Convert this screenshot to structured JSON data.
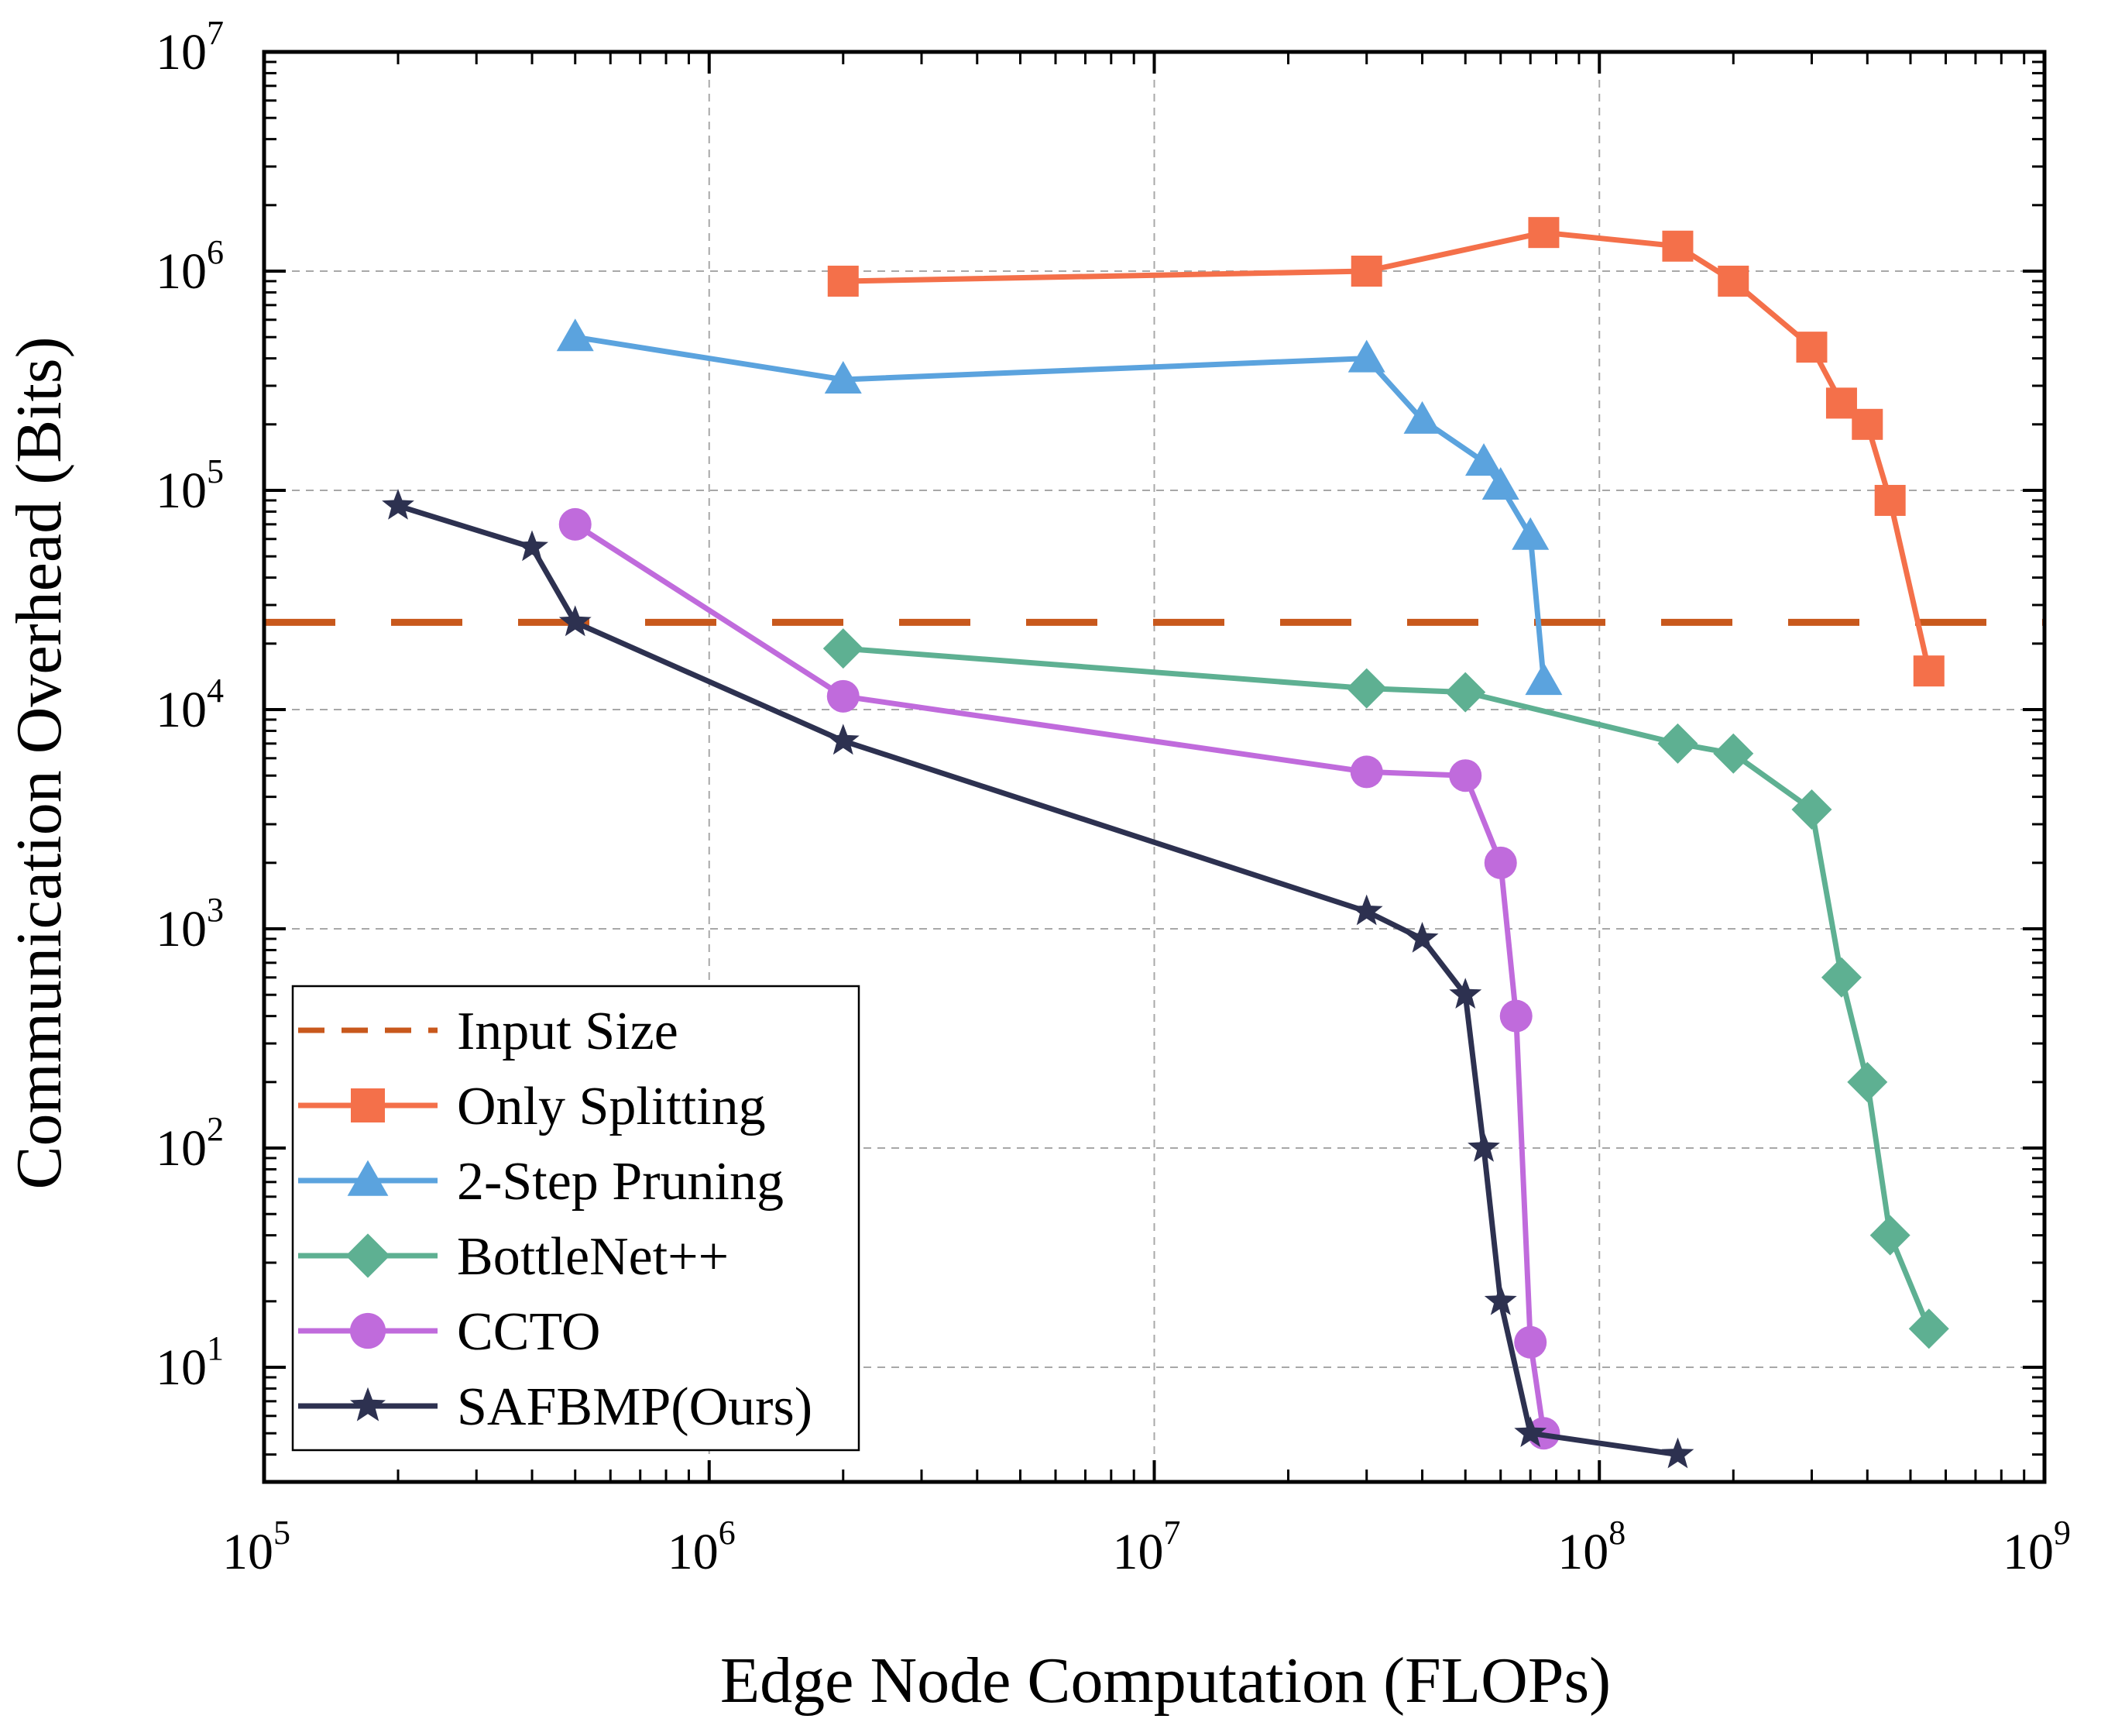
{
  "chart_data": {
    "type": "line",
    "title": "",
    "xlabel": "Edge Node Computation (FLOPs)",
    "ylabel": "Communication Overhead (Bits)",
    "xscale": "log",
    "yscale": "log",
    "xlim": [
      100000,
      1000000000
    ],
    "ylim": [
      3,
      10000000
    ],
    "grid": true,
    "x_ticks": [
      {
        "base": "10",
        "exp": "5"
      },
      {
        "base": "10",
        "exp": "6"
      },
      {
        "base": "10",
        "exp": "7"
      },
      {
        "base": "10",
        "exp": "8"
      },
      {
        "base": "10",
        "exp": "9"
      }
    ],
    "y_ticks": [
      {
        "base": "10",
        "exp": "1"
      },
      {
        "base": "10",
        "exp": "2"
      },
      {
        "base": "10",
        "exp": "3"
      },
      {
        "base": "10",
        "exp": "4"
      },
      {
        "base": "10",
        "exp": "5"
      },
      {
        "base": "10",
        "exp": "6"
      },
      {
        "base": "10",
        "exp": "7"
      }
    ],
    "legend_position": "bottom-left",
    "reference_line": {
      "name": "Input Size",
      "y": 25000,
      "color": "#c8581c",
      "style": "dashed"
    },
    "series": [
      {
        "name": "Only Splitting",
        "color": "#f4704a",
        "marker": "square",
        "x": [
          2000000,
          30000000,
          75000000,
          150000000,
          200000000,
          300000000,
          350000000,
          400000000,
          450000000,
          550000000
        ],
        "y": [
          900000,
          1000000,
          1500000,
          1300000,
          900000,
          450000,
          250000,
          200000,
          90000,
          15000
        ]
      },
      {
        "name": "2-Step Pruning",
        "color": "#5ba3de",
        "marker": "triangle",
        "x": [
          500000,
          2000000,
          30000000,
          40000000,
          55000000,
          60000000,
          70000000,
          75000000
        ],
        "y": [
          500000,
          320000,
          400000,
          210000,
          135000,
          105000,
          62000,
          13500
        ]
      },
      {
        "name": "BottleNet++",
        "color": "#5eb092",
        "marker": "diamond",
        "x": [
          2000000,
          30000000,
          50000000,
          150000000,
          200000000,
          300000000,
          350000000,
          400000000,
          450000000,
          550000000
        ],
        "y": [
          19000,
          12500,
          12000,
          7000,
          6300,
          3500,
          600,
          200,
          40,
          15
        ]
      },
      {
        "name": "CCTO",
        "color": "#c06bdc",
        "marker": "circle",
        "x": [
          500000,
          2000000,
          30000000,
          50000000,
          60000000,
          65000000,
          70000000,
          75000000
        ],
        "y": [
          70000,
          11500,
          5200,
          5000,
          2000,
          400,
          13,
          5
        ]
      },
      {
        "name": "SAFBMP(Ours)",
        "color": "#2d3150",
        "marker": "star",
        "x": [
          200000,
          400000,
          500000,
          2000000,
          30000000,
          40000000,
          50000000,
          55000000,
          60000000,
          70000000,
          150000000
        ],
        "y": [
          85000,
          55000,
          25000,
          7200,
          1200,
          900,
          500,
          100,
          20,
          5,
          4
        ]
      }
    ]
  }
}
